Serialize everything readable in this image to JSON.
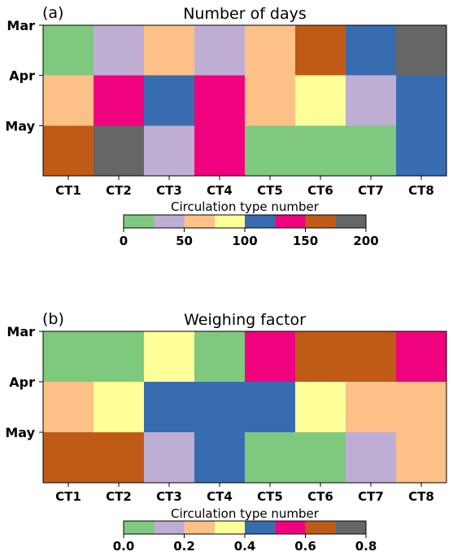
{
  "palette": [
    "#7fc97f",
    "#beaed4",
    "#fdc086",
    "#ffff99",
    "#386cb0",
    "#f0027f",
    "#bf5b17",
    "#666666"
  ],
  "chart_data": [
    {
      "type": "heatmap",
      "panel_label": "(a)",
      "title": "Number of days",
      "xlabel": "Circulation type number",
      "x_categories": [
        "CT1",
        "CT2",
        "CT3",
        "CT4",
        "CT5",
        "CT6",
        "CT7",
        "CT8"
      ],
      "y_tick_labels": [
        "Mar",
        "Apr",
        "May"
      ],
      "colorbar": {
        "range": [
          0,
          200
        ],
        "ticks": [
          "0",
          "50",
          "100",
          "150",
          "200"
        ],
        "bins": 8
      },
      "rows": [
        [
          10,
          35,
          60,
          35,
          60,
          160,
          110,
          185
        ],
        [
          60,
          135,
          110,
          135,
          60,
          85,
          35,
          110
        ],
        [
          160,
          185,
          35,
          135,
          10,
          10,
          10,
          110
        ]
      ]
    },
    {
      "type": "heatmap",
      "panel_label": "(b)",
      "title": "Weighing factor",
      "xlabel": "Circulation type number",
      "x_categories": [
        "CT1",
        "CT2",
        "CT3",
        "CT4",
        "CT5",
        "CT6",
        "CT7",
        "CT8"
      ],
      "y_tick_labels": [
        "Mar",
        "Apr",
        "May"
      ],
      "colorbar": {
        "range": [
          0,
          0.8
        ],
        "ticks": [
          "0.0",
          "0.2",
          "0.4",
          "0.6",
          "0.8"
        ],
        "bins": 8
      },
      "rows": [
        [
          0.05,
          0.05,
          0.35,
          0.05,
          0.55,
          0.65,
          0.65,
          0.55
        ],
        [
          0.25,
          0.35,
          0.45,
          0.45,
          0.45,
          0.35,
          0.25,
          0.25
        ],
        [
          0.65,
          0.65,
          0.15,
          0.45,
          0.05,
          0.05,
          0.15,
          0.25
        ]
      ]
    }
  ]
}
